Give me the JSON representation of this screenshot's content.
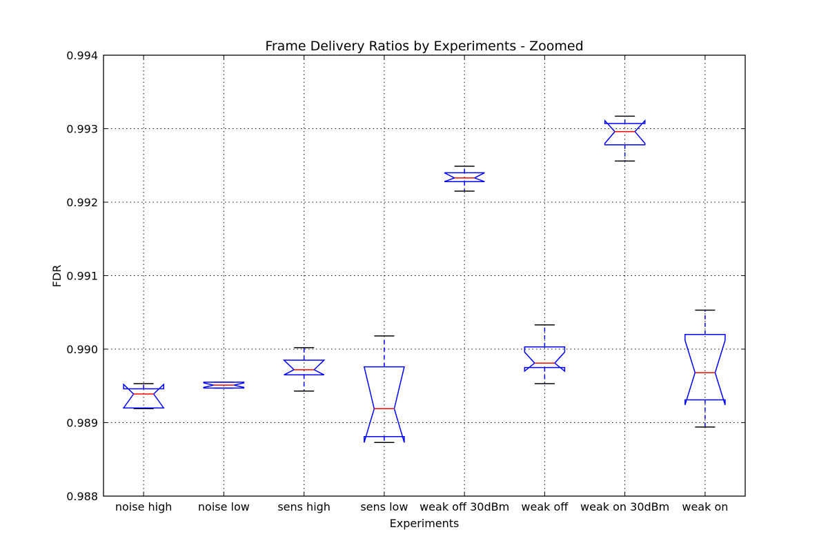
{
  "chart_data": {
    "type": "box",
    "title": "Frame Delivery Ratios by Experiments - Zoomed",
    "xlabel": "Experiments",
    "ylabel": "FDR",
    "ylim": [
      0.988,
      0.994
    ],
    "yticks": [
      0.988,
      0.989,
      0.99,
      0.991,
      0.992,
      0.993,
      0.994
    ],
    "ytick_labels": [
      "0.988",
      "0.989",
      "0.990",
      "0.991",
      "0.992",
      "0.993",
      "0.994"
    ],
    "grid": true,
    "notched": true,
    "categories": [
      "noise high",
      "noise low",
      "sens high",
      "sens low",
      "weak off 30dBm",
      "weak off",
      "weak on 30dBm",
      "weak on"
    ],
    "boxes": [
      {
        "whisker_low": 0.98919,
        "q1": 0.9892,
        "median": 0.98939,
        "q3": 0.98946,
        "whisker_high": 0.98953,
        "notch_low": 0.9892,
        "notch_high": 0.98952
      },
      {
        "whisker_low": 0.98947,
        "q1": 0.98947,
        "median": 0.98951,
        "q3": 0.98955,
        "whisker_high": 0.98955,
        "notch_low": 0.98948,
        "notch_high": 0.98954
      },
      {
        "whisker_low": 0.98943,
        "q1": 0.98965,
        "median": 0.98972,
        "q3": 0.98985,
        "whisker_high": 0.99002,
        "notch_low": 0.98965,
        "notch_high": 0.98985
      },
      {
        "whisker_low": 0.98873,
        "q1": 0.98881,
        "median": 0.98919,
        "q3": 0.98976,
        "whisker_high": 0.99018,
        "notch_low": 0.98873,
        "notch_high": 0.98976
      },
      {
        "whisker_low": 0.99215,
        "q1": 0.99228,
        "median": 0.99233,
        "q3": 0.9924,
        "whisker_high": 0.99249,
        "notch_low": 0.99228,
        "notch_high": 0.9924
      },
      {
        "whisker_low": 0.98953,
        "q1": 0.98975,
        "median": 0.98981,
        "q3": 0.99003,
        "whisker_high": 0.99033,
        "notch_low": 0.9897,
        "notch_high": 0.98996
      },
      {
        "whisker_low": 0.99256,
        "q1": 0.99278,
        "median": 0.99296,
        "q3": 0.99307,
        "whisker_high": 0.99317,
        "notch_low": 0.9928,
        "notch_high": 0.99311
      },
      {
        "whisker_low": 0.98894,
        "q1": 0.98931,
        "median": 0.98968,
        "q3": 0.9902,
        "whisker_high": 0.99053,
        "notch_low": 0.98924,
        "notch_high": 0.99012
      }
    ],
    "colors": {
      "box": "#0000ff",
      "median": "#ff0000",
      "cap": "#000000"
    }
  }
}
